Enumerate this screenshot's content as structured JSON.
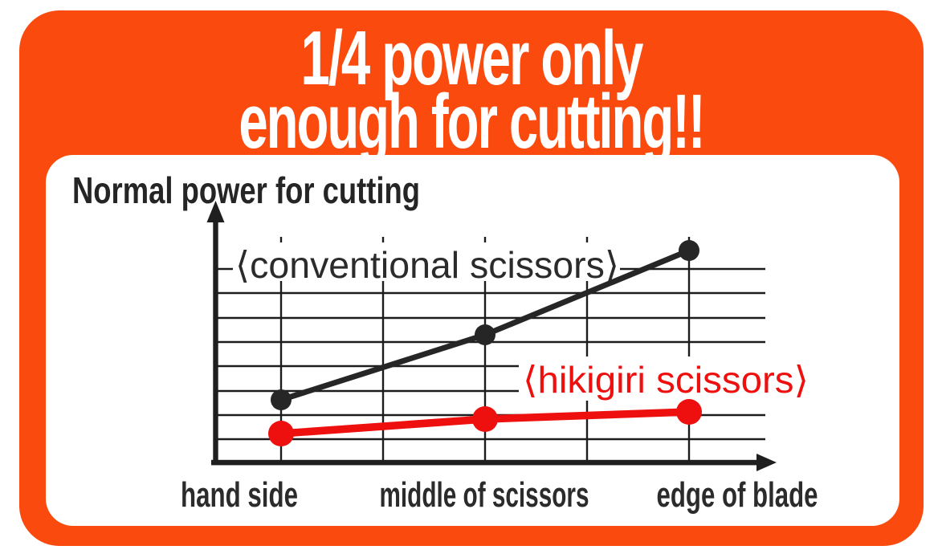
{
  "title": {
    "line1": "1/4 power only",
    "line2": "enough for cutting!!"
  },
  "chart": {
    "y_axis_label": "Normal power for cutting",
    "legend_conventional": "⟨conventional scissors⟩",
    "legend_hikigiri": "⟨hikigiri scissors⟩"
  },
  "chart_data": {
    "type": "line",
    "title": "1/4 power only enough for cutting!!",
    "ylabel": "Normal power for cutting",
    "xlabel": "",
    "categories": [
      "hand side",
      "middle of scissors",
      "edge of blade"
    ],
    "series": [
      {
        "name": "conventional scissors",
        "color": "#262626",
        "values": [
          2.6,
          5.3,
          8.8
        ]
      },
      {
        "name": "hikigiri scissors",
        "color": "#ee0f0f",
        "values": [
          1.2,
          1.8,
          2.1
        ]
      }
    ],
    "ylim": [
      0,
      9.4
    ],
    "grid": true,
    "y_tick_labels": [],
    "legend_position": "inline-on-plot"
  },
  "colors": {
    "banner_orange": "#fa4a0e",
    "series_black": "#262626",
    "series_red": "#ee0f0f",
    "ink": "#252525",
    "panel_white": "#ffffff"
  }
}
